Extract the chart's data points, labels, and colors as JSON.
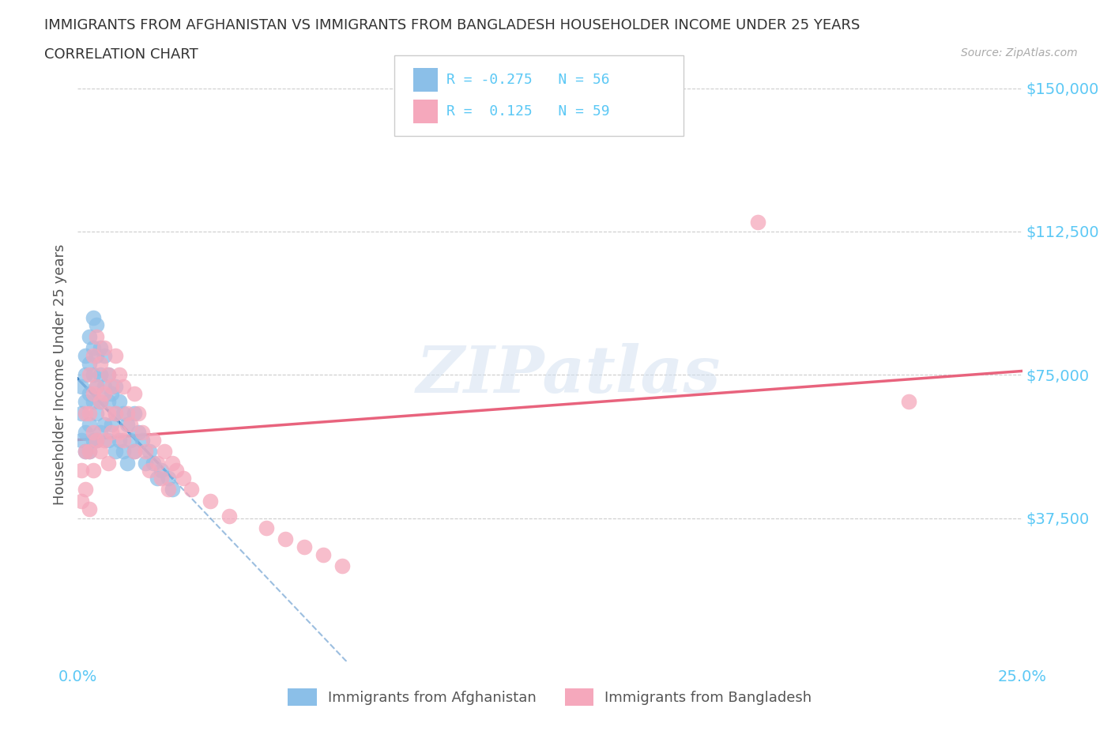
{
  "title_line1": "IMMIGRANTS FROM AFGHANISTAN VS IMMIGRANTS FROM BANGLADESH HOUSEHOLDER INCOME UNDER 25 YEARS",
  "title_line2": "CORRELATION CHART",
  "source_text": "Source: ZipAtlas.com",
  "ylabel": "Householder Income Under 25 years",
  "xlim": [
    0.0,
    0.25
  ],
  "ylim": [
    0,
    150000
  ],
  "yticks": [
    0,
    37500,
    75000,
    112500,
    150000
  ],
  "ytick_labels": [
    "",
    "$37,500",
    "$75,000",
    "$112,500",
    "$150,000"
  ],
  "xticks": [
    0.0,
    0.05,
    0.1,
    0.15,
    0.2,
    0.25
  ],
  "watermark": "ZIPatlas",
  "color_afghanistan": "#8bbfe8",
  "color_bangladesh": "#f5a8bc",
  "color_trend_afghanistan": "#3a7fc1",
  "color_trend_bangladesh": "#e8637d",
  "color_axis_labels": "#5bc8f5",
  "color_title": "#333333",
  "legend_label_afghanistan": "Immigrants from Afghanistan",
  "legend_label_bangladesh": "Immigrants from Bangladesh",
  "af_x": [
    0.001,
    0.001,
    0.001,
    0.002,
    0.002,
    0.002,
    0.002,
    0.002,
    0.003,
    0.003,
    0.003,
    0.003,
    0.003,
    0.004,
    0.004,
    0.004,
    0.004,
    0.004,
    0.005,
    0.005,
    0.005,
    0.005,
    0.005,
    0.006,
    0.006,
    0.006,
    0.006,
    0.007,
    0.007,
    0.007,
    0.008,
    0.008,
    0.008,
    0.009,
    0.009,
    0.01,
    0.01,
    0.01,
    0.011,
    0.011,
    0.012,
    0.012,
    0.013,
    0.013,
    0.014,
    0.015,
    0.015,
    0.016,
    0.017,
    0.018,
    0.019,
    0.02,
    0.021,
    0.022,
    0.024,
    0.025
  ],
  "af_y": [
    65000,
    72000,
    58000,
    80000,
    75000,
    68000,
    60000,
    55000,
    85000,
    78000,
    70000,
    62000,
    55000,
    90000,
    82000,
    75000,
    68000,
    58000,
    88000,
    80000,
    72000,
    65000,
    58000,
    82000,
    75000,
    68000,
    60000,
    80000,
    72000,
    62000,
    75000,
    68000,
    58000,
    70000,
    62000,
    72000,
    65000,
    55000,
    68000,
    58000,
    65000,
    55000,
    62000,
    52000,
    58000,
    65000,
    55000,
    60000,
    58000,
    52000,
    55000,
    52000,
    48000,
    50000,
    48000,
    45000
  ],
  "bd_x": [
    0.001,
    0.001,
    0.002,
    0.002,
    0.002,
    0.003,
    0.003,
    0.003,
    0.003,
    0.004,
    0.004,
    0.004,
    0.004,
    0.005,
    0.005,
    0.005,
    0.006,
    0.006,
    0.006,
    0.007,
    0.007,
    0.007,
    0.008,
    0.008,
    0.008,
    0.009,
    0.009,
    0.01,
    0.01,
    0.011,
    0.011,
    0.012,
    0.012,
    0.013,
    0.014,
    0.015,
    0.015,
    0.016,
    0.017,
    0.018,
    0.019,
    0.02,
    0.021,
    0.022,
    0.023,
    0.024,
    0.025,
    0.026,
    0.028,
    0.03,
    0.035,
    0.04,
    0.05,
    0.055,
    0.06,
    0.065,
    0.07,
    0.18,
    0.22
  ],
  "bd_y": [
    50000,
    42000,
    65000,
    55000,
    45000,
    75000,
    65000,
    55000,
    40000,
    80000,
    70000,
    60000,
    50000,
    85000,
    72000,
    58000,
    78000,
    68000,
    55000,
    82000,
    70000,
    58000,
    75000,
    65000,
    52000,
    72000,
    60000,
    80000,
    65000,
    75000,
    60000,
    72000,
    58000,
    65000,
    62000,
    70000,
    55000,
    65000,
    60000,
    55000,
    50000,
    58000,
    52000,
    48000,
    55000,
    45000,
    52000,
    50000,
    48000,
    45000,
    42000,
    38000,
    35000,
    32000,
    30000,
    28000,
    25000,
    115000,
    68000
  ],
  "af_trend_x0": 0.0,
  "af_trend_x1": 0.025,
  "af_trend_y0": 74000,
  "af_trend_y1": 48000,
  "bd_trend_x0": 0.0,
  "bd_trend_x1": 0.25,
  "bd_trend_y0": 58000,
  "bd_trend_y1": 76000
}
